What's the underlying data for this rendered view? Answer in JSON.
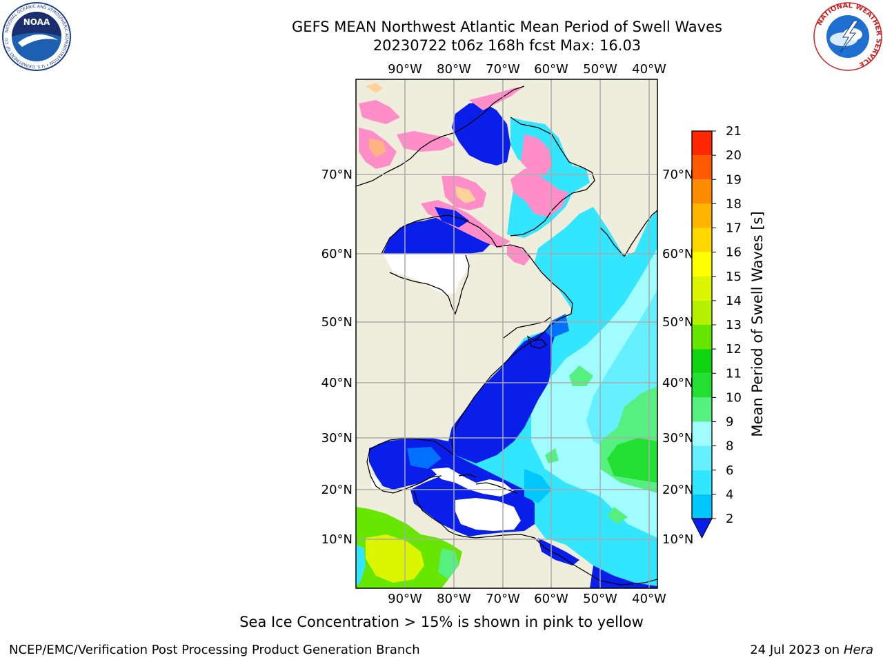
{
  "header": {
    "title_line1": "GEFS MEAN Northwest Atlantic Mean Period of Swell Waves",
    "title_line2": "20230722 t06z 168h fcst   Max: 16.03"
  },
  "logos": {
    "noaa": {
      "text": "NOAA",
      "ring_text": "NATIONAL OCEANIC AND ATMOSPHERIC ADMINISTRATION • U.S. DEPARTMENT OF COMMERCE"
    },
    "nws": {
      "ring_text": "NATIONAL WEATHER SERVICE"
    }
  },
  "map": {
    "lon_labels": [
      "90°W",
      "80°W",
      "70°W",
      "60°W",
      "50°W",
      "40°W"
    ],
    "lat_labels": [
      "70°N",
      "60°N",
      "50°N",
      "40°N",
      "30°N",
      "20°N",
      "10°N"
    ],
    "colors": {
      "land": "#efeedc",
      "grid": "#aaaaaa",
      "coast": "#000000"
    }
  },
  "colorbar": {
    "label": "Mean Period of Swell Waves [s]",
    "ticks": [
      "2",
      "4",
      "6",
      "8",
      "9",
      "10",
      "11",
      "12",
      "13",
      "14",
      "15",
      "16",
      "17",
      "18",
      "19",
      "20",
      "21"
    ],
    "colors": [
      "#0070ff",
      "#00c8ff",
      "#33e6ff",
      "#66f0ff",
      "#a0fcff",
      "#55f080",
      "#22e032",
      "#11d411",
      "#66e600",
      "#b4f000",
      "#dcf500",
      "#ffff00",
      "#ffd800",
      "#ffb400",
      "#ff8c00",
      "#ff5a00",
      "#ff2800",
      "#ff0000"
    ]
  },
  "note": "Sea Ice Concentration > 15% is shown in pink to yellow",
  "footer": {
    "left": "NCEP/EMC/Verification Post Processing Product Generation Branch",
    "right_prefix": "24 Jul 2023 on ",
    "right_machine": "Hera"
  }
}
